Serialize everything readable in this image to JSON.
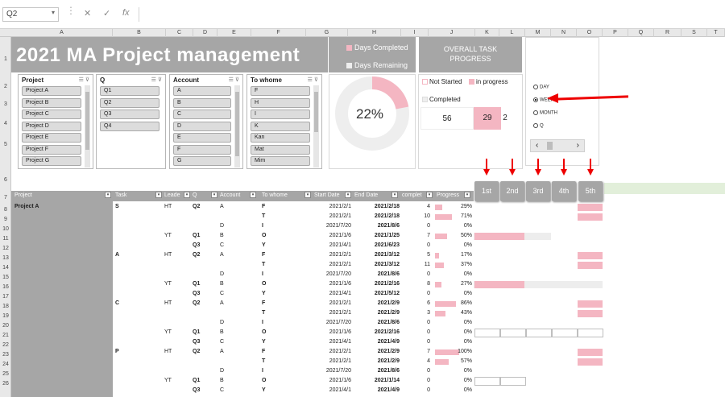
{
  "formula_bar": {
    "name_box": "Q2",
    "cancel_icon": "✕",
    "enter_icon": "✓",
    "fx_label": "fx"
  },
  "columns": [
    "A",
    "B",
    "C",
    "D",
    "E",
    "F",
    "G",
    "H",
    "I",
    "J",
    "K",
    "L",
    "M",
    "N",
    "O",
    "P",
    "Q",
    "R",
    "S",
    "T"
  ],
  "rows": [
    "1",
    "2",
    "3",
    "4",
    "5",
    "6",
    "7",
    "8",
    "9",
    "10",
    "11",
    "12",
    "13",
    "14",
    "15",
    "16",
    "17",
    "18",
    "19",
    "20",
    "21",
    "22",
    "23",
    "24",
    "25",
    "26"
  ],
  "title": "2021 MA Project management",
  "legend": {
    "days_completed": "Days Completed",
    "days_remaining": "Days Remaining"
  },
  "overall": {
    "title": "OVERALL TASK PROGRESS",
    "not_started": "Not Started",
    "in_progress": "in progress",
    "completed": "Completed",
    "val_completed": "56",
    "val_inprog": "29",
    "val_notstarted": "2"
  },
  "donut": {
    "percent_label": "22%",
    "completed_fraction": 0.22
  },
  "slicers": {
    "project": {
      "title": "Project",
      "items": [
        "Project A",
        "Project B",
        "Project C",
        "Project D",
        "Project E",
        "Project F",
        "Project G"
      ]
    },
    "q": {
      "title": "Q",
      "items": [
        "Q1",
        "Q2",
        "Q3",
        "Q4"
      ]
    },
    "account": {
      "title": "Account",
      "items": [
        "A",
        "B",
        "C",
        "D",
        "E",
        "F",
        "G"
      ]
    },
    "to_whome": {
      "title": "To whome",
      "items": [
        "F",
        "H",
        "I",
        "K",
        "Kan",
        "Mat",
        "Mim"
      ]
    }
  },
  "period": {
    "options": [
      "DAY",
      "WEEK",
      "MONTH",
      "Q"
    ],
    "selected": "WEEK"
  },
  "week_buttons": [
    "1st",
    "2nd",
    "3rd",
    "4th",
    "5th"
  ],
  "table": {
    "headers": {
      "project": "Project",
      "task": "Task",
      "leader": "Leade",
      "q": "Q",
      "account": "Account",
      "to_whome": "To whome",
      "start": "Start Date",
      "end": "End Date",
      "days": "Days",
      "days2": "complet",
      "progress": "Progress"
    },
    "rows": [
      {
        "project": "Project A",
        "task": "S",
        "leader": "HT",
        "q": "Q2",
        "acc": "A",
        "to": "F",
        "start": "2021/2/1",
        "end": "2021/2/18",
        "days": "4",
        "prog": "29%",
        "p": 0.29,
        "gantt": "p5"
      },
      {
        "project": "",
        "task": "",
        "leader": "",
        "q": "",
        "acc": "",
        "to": "T",
        "start": "2021/2/1",
        "end": "2021/2/18",
        "days": "10",
        "prog": "71%",
        "p": 0.71,
        "gantt": "p5"
      },
      {
        "project": "",
        "task": "",
        "leader": "",
        "q": "",
        "acc": "D",
        "to": "I",
        "start": "2021/7/20",
        "end": "2021/8/6",
        "days": "0",
        "prog": "0%",
        "p": 0,
        "gantt": ""
      },
      {
        "project": "",
        "task": "",
        "leader": "YT",
        "q": "Q1",
        "acc": "B",
        "to": "O",
        "start": "2021/1/6",
        "end": "2021/1/25",
        "days": "7",
        "prog": "50%",
        "p": 0.5,
        "gantt": "bar1"
      },
      {
        "project": "",
        "task": "",
        "leader": "",
        "q": "Q3",
        "acc": "C",
        "to": "Y",
        "start": "2021/4/1",
        "end": "2021/6/23",
        "days": "0",
        "prog": "0%",
        "p": 0,
        "gantt": ""
      },
      {
        "project": "",
        "task": "A",
        "leader": "HT",
        "q": "Q2",
        "acc": "A",
        "to": "F",
        "start": "2021/2/1",
        "end": "2021/3/12",
        "days": "5",
        "prog": "17%",
        "p": 0.17,
        "gantt": "p5"
      },
      {
        "project": "",
        "task": "",
        "leader": "",
        "q": "",
        "acc": "",
        "to": "T",
        "start": "2021/2/1",
        "end": "2021/3/12",
        "days": "11",
        "prog": "37%",
        "p": 0.37,
        "gantt": "p5"
      },
      {
        "project": "",
        "task": "",
        "leader": "",
        "q": "",
        "acc": "D",
        "to": "I",
        "start": "2021/7/20",
        "end": "2021/8/6",
        "days": "0",
        "prog": "0%",
        "p": 0,
        "gantt": ""
      },
      {
        "project": "",
        "task": "",
        "leader": "YT",
        "q": "Q1",
        "acc": "B",
        "to": "O",
        "start": "2021/1/6",
        "end": "2021/2/16",
        "days": "8",
        "prog": "27%",
        "p": 0.27,
        "gantt": "bar2"
      },
      {
        "project": "",
        "task": "",
        "leader": "",
        "q": "Q3",
        "acc": "C",
        "to": "Y",
        "start": "2021/4/1",
        "end": "2021/5/12",
        "days": "0",
        "prog": "0%",
        "p": 0,
        "gantt": ""
      },
      {
        "project": "",
        "task": "C",
        "leader": "HT",
        "q": "Q2",
        "acc": "A",
        "to": "F",
        "start": "2021/2/1",
        "end": "2021/2/9",
        "days": "6",
        "prog": "86%",
        "p": 0.86,
        "gantt": "p5"
      },
      {
        "project": "",
        "task": "",
        "leader": "",
        "q": "",
        "acc": "",
        "to": "T",
        "start": "2021/2/1",
        "end": "2021/2/9",
        "days": "3",
        "prog": "43%",
        "p": 0.43,
        "gantt": "p5"
      },
      {
        "project": "",
        "task": "",
        "leader": "",
        "q": "",
        "acc": "D",
        "to": "I",
        "start": "2021/7/20",
        "end": "2021/8/6",
        "days": "0",
        "prog": "0%",
        "p": 0,
        "gantt": ""
      },
      {
        "project": "",
        "task": "",
        "leader": "YT",
        "q": "Q1",
        "acc": "B",
        "to": "O",
        "start": "2021/1/6",
        "end": "2021/2/16",
        "days": "0",
        "prog": "0%",
        "p": 0,
        "gantt": "box5"
      },
      {
        "project": "",
        "task": "",
        "leader": "",
        "q": "Q3",
        "acc": "C",
        "to": "Y",
        "start": "2021/4/1",
        "end": "2021/4/9",
        "days": "0",
        "prog": "0%",
        "p": 0,
        "gantt": ""
      },
      {
        "project": "",
        "task": "P",
        "leader": "HT",
        "q": "Q2",
        "acc": "A",
        "to": "F",
        "start": "2021/2/1",
        "end": "2021/2/9",
        "days": "7",
        "prog": "100%",
        "p": 1.0,
        "gantt": "p5"
      },
      {
        "project": "",
        "task": "",
        "leader": "",
        "q": "",
        "acc": "",
        "to": "T",
        "start": "2021/2/1",
        "end": "2021/2/9",
        "days": "4",
        "prog": "57%",
        "p": 0.57,
        "gantt": "p5"
      },
      {
        "project": "",
        "task": "",
        "leader": "",
        "q": "",
        "acc": "D",
        "to": "I",
        "start": "2021/7/20",
        "end": "2021/8/6",
        "days": "0",
        "prog": "0%",
        "p": 0,
        "gantt": ""
      },
      {
        "project": "",
        "task": "",
        "leader": "YT",
        "q": "Q1",
        "acc": "B",
        "to": "O",
        "start": "2021/1/6",
        "end": "2021/1/14",
        "days": "0",
        "prog": "0%",
        "p": 0,
        "gantt": "box2"
      },
      {
        "project": "",
        "task": "",
        "leader": "",
        "q": "Q3",
        "acc": "C",
        "to": "Y",
        "start": "2021/4/1",
        "end": "2021/4/9",
        "days": "0",
        "prog": "0%",
        "p": 0,
        "gantt": ""
      }
    ]
  },
  "colors": {
    "pink": "#f4b6c2",
    "gray": "#a6a6a6",
    "arrow": "#e00000"
  }
}
